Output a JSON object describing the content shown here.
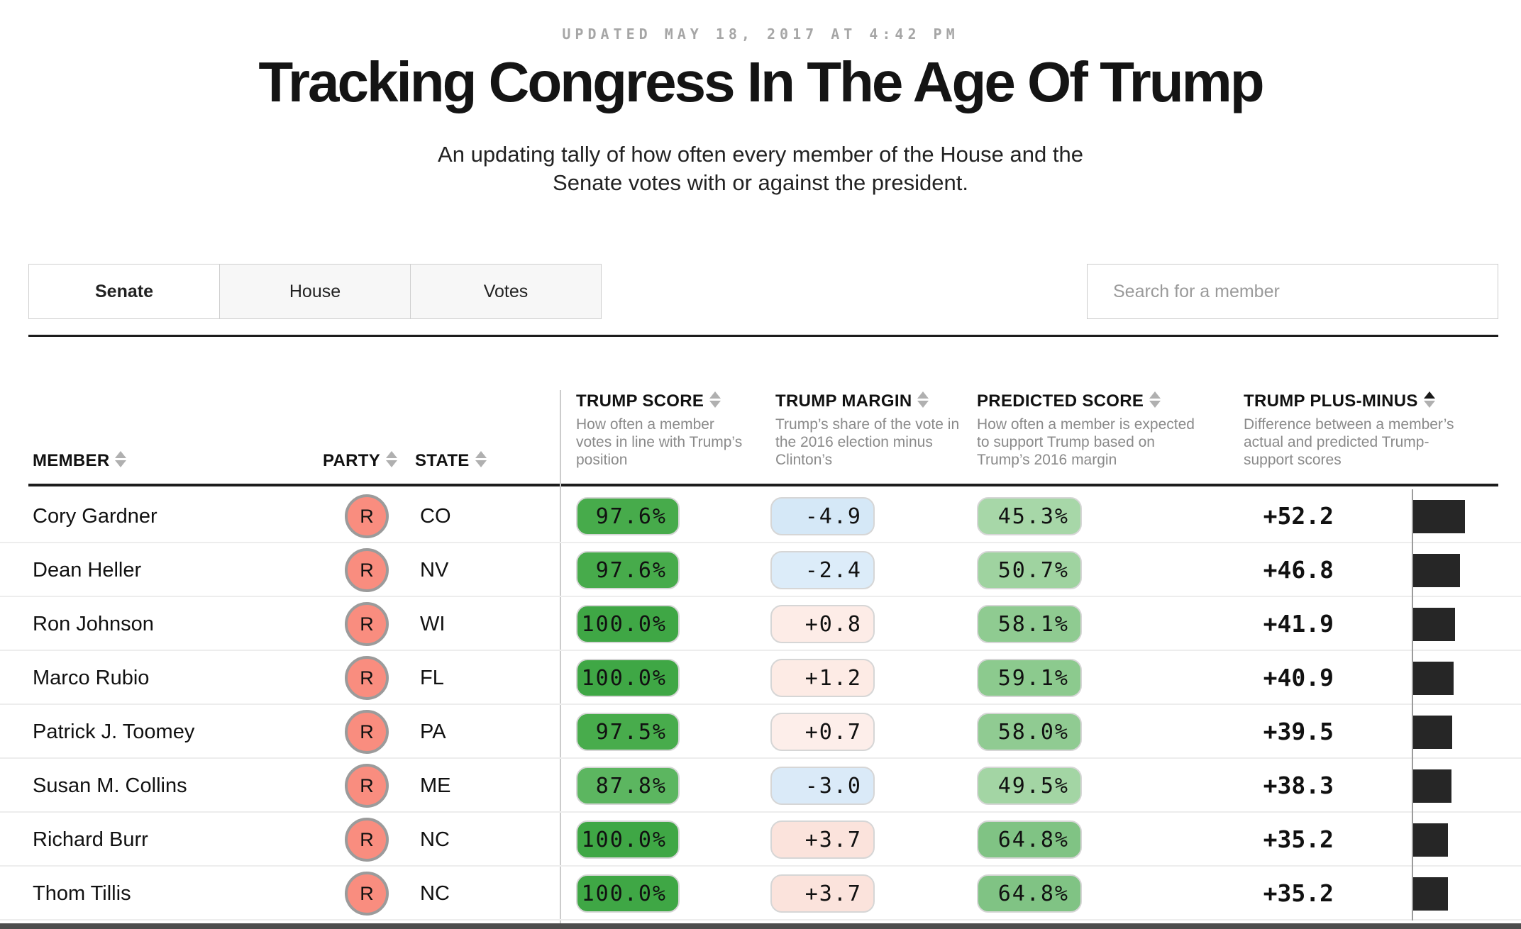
{
  "meta": {
    "updated": "UPDATED MAY 18, 2017 AT 4:42 PM"
  },
  "header": {
    "title": "Tracking Congress In The Age Of Trump",
    "subtitle_line1": "An updating tally of how often every member of the House and the",
    "subtitle_line2": "Senate votes with or against the president."
  },
  "tabs": [
    {
      "label": "Senate",
      "active": true
    },
    {
      "label": "House",
      "active": false
    },
    {
      "label": "Votes",
      "active": false
    }
  ],
  "search": {
    "placeholder": "Search for a member"
  },
  "colors": {
    "party_r_badge": "#f98d7f",
    "bar": "#262626",
    "accent_dark": "#1c1c1c"
  },
  "table": {
    "columns": {
      "member": {
        "label": "MEMBER"
      },
      "party": {
        "label": "PARTY"
      },
      "state": {
        "label": "STATE"
      },
      "trump_score": {
        "label": "TRUMP SCORE",
        "description": "How often a member votes in line with Trump’s position"
      },
      "trump_margin": {
        "label": "TRUMP MARGIN",
        "description": "Trump’s share of the vote in the 2016 election minus Clinton’s"
      },
      "predicted_score": {
        "label": "PREDICTED SCORE",
        "description": "How often a member is expected to support Trump based on Trump’s 2016 margin"
      },
      "plus_minus": {
        "label": "TRUMP PLUS-MINUS",
        "description": "Difference between a member’s actual and predicted Trump-support scores",
        "sorted": true
      }
    },
    "rows": [
      {
        "name": "Cory Gardner",
        "party": "R",
        "state": "CO",
        "trump_score": "97.6%",
        "trump_margin": "-4.9",
        "predicted": "45.3%",
        "plus_minus": "+52.2",
        "colors": {
          "score": "#47ab4b",
          "margin": "#d5e8f7",
          "predicted": "#a7d7a8"
        }
      },
      {
        "name": "Dean Heller",
        "party": "R",
        "state": "NV",
        "trump_score": "97.6%",
        "trump_margin": "-2.4",
        "predicted": "50.7%",
        "plus_minus": "+46.8",
        "colors": {
          "score": "#47ab4b",
          "margin": "#dcecf9",
          "predicted": "#9fd3a0"
        }
      },
      {
        "name": "Ron Johnson",
        "party": "R",
        "state": "WI",
        "trump_score": "100.0%",
        "trump_margin": "+0.8",
        "predicted": "58.1%",
        "plus_minus": "+41.9",
        "colors": {
          "score": "#3fa745",
          "margin": "#fdece7",
          "predicted": "#8fcb91"
        }
      },
      {
        "name": "Marco Rubio",
        "party": "R",
        "state": "FL",
        "trump_score": "100.0%",
        "trump_margin": "+1.2",
        "predicted": "59.1%",
        "plus_minus": "+40.9",
        "colors": {
          "score": "#3fa745",
          "margin": "#fdebe5",
          "predicted": "#8cca8e"
        }
      },
      {
        "name": "Patrick J. Toomey",
        "party": "R",
        "state": "PA",
        "trump_score": "97.5%",
        "trump_margin": "+0.7",
        "predicted": "58.0%",
        "plus_minus": "+39.5",
        "colors": {
          "score": "#48ac4c",
          "margin": "#fdeeea",
          "predicted": "#90cb92"
        }
      },
      {
        "name": "Susan M. Collins",
        "party": "R",
        "state": "ME",
        "trump_score": "87.8%",
        "trump_margin": "-3.0",
        "predicted": "49.5%",
        "plus_minus": "+38.3",
        "colors": {
          "score": "#5cb660",
          "margin": "#daeaf8",
          "predicted": "#a3d5a4"
        }
      },
      {
        "name": "Richard Burr",
        "party": "R",
        "state": "NC",
        "trump_score": "100.0%",
        "trump_margin": "+3.7",
        "predicted": "64.8%",
        "plus_minus": "+35.2",
        "colors": {
          "score": "#3fa745",
          "margin": "#fbe3dc",
          "predicted": "#80c384"
        }
      },
      {
        "name": "Thom Tillis",
        "party": "R",
        "state": "NC",
        "trump_score": "100.0%",
        "trump_margin": "+3.7",
        "predicted": "64.8%",
        "plus_minus": "+35.2",
        "colors": {
          "score": "#3fa745",
          "margin": "#fbe3dc",
          "predicted": "#80c384"
        }
      }
    ]
  }
}
